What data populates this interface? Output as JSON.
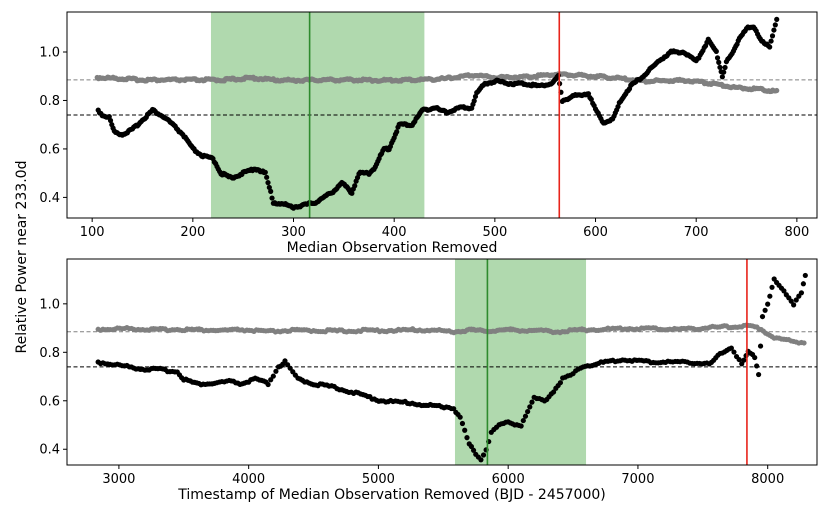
{
  "figure": {
    "shared_ylabel": "Relative Power near 233.0d"
  },
  "chart_data": [
    {
      "type": "scatter",
      "xlabel": "Median Observation Removed",
      "ylabel": "Relative Power near 233.0d",
      "xlim": [
        75,
        820
      ],
      "ylim": [
        0.315,
        1.165
      ],
      "xticks": [
        100,
        200,
        300,
        400,
        500,
        600,
        700,
        800
      ],
      "yticks": [
        0.4,
        0.6,
        0.8,
        1.0
      ],
      "xtick_labels": [
        "100",
        "200",
        "300",
        "400",
        "500",
        "600",
        "700",
        "800"
      ],
      "ytick_labels": [
        "0.4",
        "0.6",
        "0.8",
        "1.0"
      ],
      "shaded_region": [
        218,
        430
      ],
      "green_vline": 316,
      "red_vline": 564,
      "hlines": [
        0.885,
        0.74
      ],
      "colors": {
        "shade": "#b0d9ae",
        "green_line": "#2e8b2e",
        "red_line": "#e8241a",
        "gray_series": "#808080",
        "black_series": "#000000"
      },
      "series": [
        {
          "color": "#808080",
          "x": [
            105,
            130,
            150,
            175,
            200,
            230,
            260,
            280,
            300,
            330,
            360,
            390,
            420,
            450,
            480,
            500,
            530,
            560,
            590,
            620,
            650,
            690,
            720,
            740,
            760,
            780
          ],
          "y": [
            0.895,
            0.89,
            0.885,
            0.885,
            0.885,
            0.885,
            0.893,
            0.885,
            0.883,
            0.885,
            0.885,
            0.883,
            0.885,
            0.89,
            0.905,
            0.895,
            0.898,
            0.908,
            0.903,
            0.893,
            0.88,
            0.883,
            0.868,
            0.853,
            0.848,
            0.838
          ]
        },
        {
          "color": "#000000",
          "x": [
            106,
            110,
            117,
            122,
            130,
            140,
            150,
            160,
            168,
            175,
            190,
            200,
            210,
            220,
            228,
            238,
            250,
            262,
            272,
            280,
            292,
            300,
            312,
            322,
            330,
            338,
            348,
            358,
            365,
            375,
            380,
            390,
            395,
            405,
            418,
            428,
            440,
            452,
            465,
            477,
            482,
            490,
            502,
            515,
            530,
            543,
            557,
            563,
            567,
            580,
            593,
            600,
            608,
            617,
            625,
            635,
            650,
            662,
            675,
            688,
            700,
            712,
            720,
            726,
            730,
            737,
            743,
            750,
            757,
            765,
            773,
            780
          ],
          "y": [
            0.76,
            0.74,
            0.73,
            0.67,
            0.66,
            0.68,
            0.72,
            0.76,
            0.74,
            0.72,
            0.66,
            0.6,
            0.57,
            0.56,
            0.5,
            0.48,
            0.5,
            0.52,
            0.5,
            0.38,
            0.37,
            0.36,
            0.37,
            0.38,
            0.4,
            0.42,
            0.46,
            0.42,
            0.5,
            0.5,
            0.52,
            0.6,
            0.6,
            0.7,
            0.7,
            0.76,
            0.77,
            0.75,
            0.77,
            0.77,
            0.83,
            0.87,
            0.88,
            0.87,
            0.87,
            0.86,
            0.87,
            0.9,
            0.8,
            0.82,
            0.83,
            0.76,
            0.71,
            0.72,
            0.8,
            0.86,
            0.91,
            0.96,
            1.0,
            1.0,
            0.96,
            1.05,
            1.0,
            0.9,
            0.96,
            1.0,
            1.06,
            1.1,
            1.1,
            1.05,
            1.02,
            1.13
          ]
        }
      ]
    },
    {
      "type": "scatter",
      "xlabel": "Timestamp of Median Observation Removed (BJD - 2457000)",
      "ylabel": "",
      "xlim": [
        2600,
        8380
      ],
      "ylim": [
        0.335,
        1.185
      ],
      "xticks": [
        3000,
        4000,
        5000,
        6000,
        7000,
        8000
      ],
      "yticks": [
        0.4,
        0.6,
        0.8,
        1.0
      ],
      "xtick_labels": [
        "3000",
        "4000",
        "5000",
        "6000",
        "7000",
        "8000"
      ],
      "ytick_labels": [
        "0.4",
        "0.6",
        "0.8",
        "1.0"
      ],
      "shaded_region": [
        5590,
        6600
      ],
      "green_vline": 5840,
      "red_vline": 7840,
      "hlines": [
        0.885,
        0.74
      ],
      "colors": {
        "shade": "#b0d9ae",
        "green_line": "#2e8b2e",
        "red_line": "#e8241a",
        "gray_series": "#808080",
        "black_series": "#000000"
      },
      "series": [
        {
          "color": "#808080",
          "x": [
            2840,
            3080,
            3200,
            3300,
            3450,
            3600,
            3800,
            3950,
            4150,
            4300,
            4500,
            4700,
            4900,
            5100,
            5300,
            5450,
            5600,
            5700,
            5800,
            5900,
            6000,
            6200,
            6400,
            6550,
            6750,
            6900,
            7100,
            7300,
            7500,
            7650,
            7750,
            7850,
            7950,
            8050,
            8200,
            8280
          ],
          "y": [
            0.895,
            0.898,
            0.895,
            0.893,
            0.895,
            0.893,
            0.89,
            0.893,
            0.885,
            0.89,
            0.89,
            0.888,
            0.89,
            0.89,
            0.893,
            0.89,
            0.885,
            0.893,
            0.888,
            0.89,
            0.893,
            0.89,
            0.885,
            0.893,
            0.895,
            0.898,
            0.898,
            0.895,
            0.9,
            0.905,
            0.905,
            0.91,
            0.895,
            0.86,
            0.845,
            0.84
          ]
        },
        {
          "color": "#000000",
          "x": [
            2840,
            3080,
            3200,
            3300,
            3450,
            3500,
            3600,
            3700,
            3850,
            3950,
            4050,
            4150,
            4230,
            4280,
            4320,
            4380,
            4500,
            4620,
            4700,
            4900,
            5020,
            5280,
            5350,
            5450,
            5580,
            5630,
            5700,
            5750,
            5790,
            5830,
            5870,
            5930,
            6000,
            6100,
            6200,
            6280,
            6350,
            6420,
            6500,
            6560,
            6750,
            6900,
            7100,
            7250,
            7400,
            7550,
            7650,
            7720,
            7800,
            7850,
            7900,
            7930,
            7960,
            8000,
            8050,
            8200,
            8260,
            8290
          ],
          "y": [
            0.76,
            0.74,
            0.73,
            0.73,
            0.72,
            0.69,
            0.67,
            0.67,
            0.68,
            0.67,
            0.69,
            0.67,
            0.74,
            0.76,
            0.73,
            0.69,
            0.67,
            0.66,
            0.65,
            0.62,
            0.6,
            0.59,
            0.58,
            0.58,
            0.57,
            0.53,
            0.42,
            0.38,
            0.36,
            0.4,
            0.47,
            0.5,
            0.51,
            0.5,
            0.61,
            0.6,
            0.64,
            0.69,
            0.71,
            0.74,
            0.76,
            0.77,
            0.76,
            0.76,
            0.76,
            0.75,
            0.8,
            0.82,
            0.75,
            0.8,
            0.78,
            0.71,
            0.95,
            1.0,
            1.1,
            1.0,
            1.05,
            1.12
          ]
        }
      ]
    }
  ]
}
